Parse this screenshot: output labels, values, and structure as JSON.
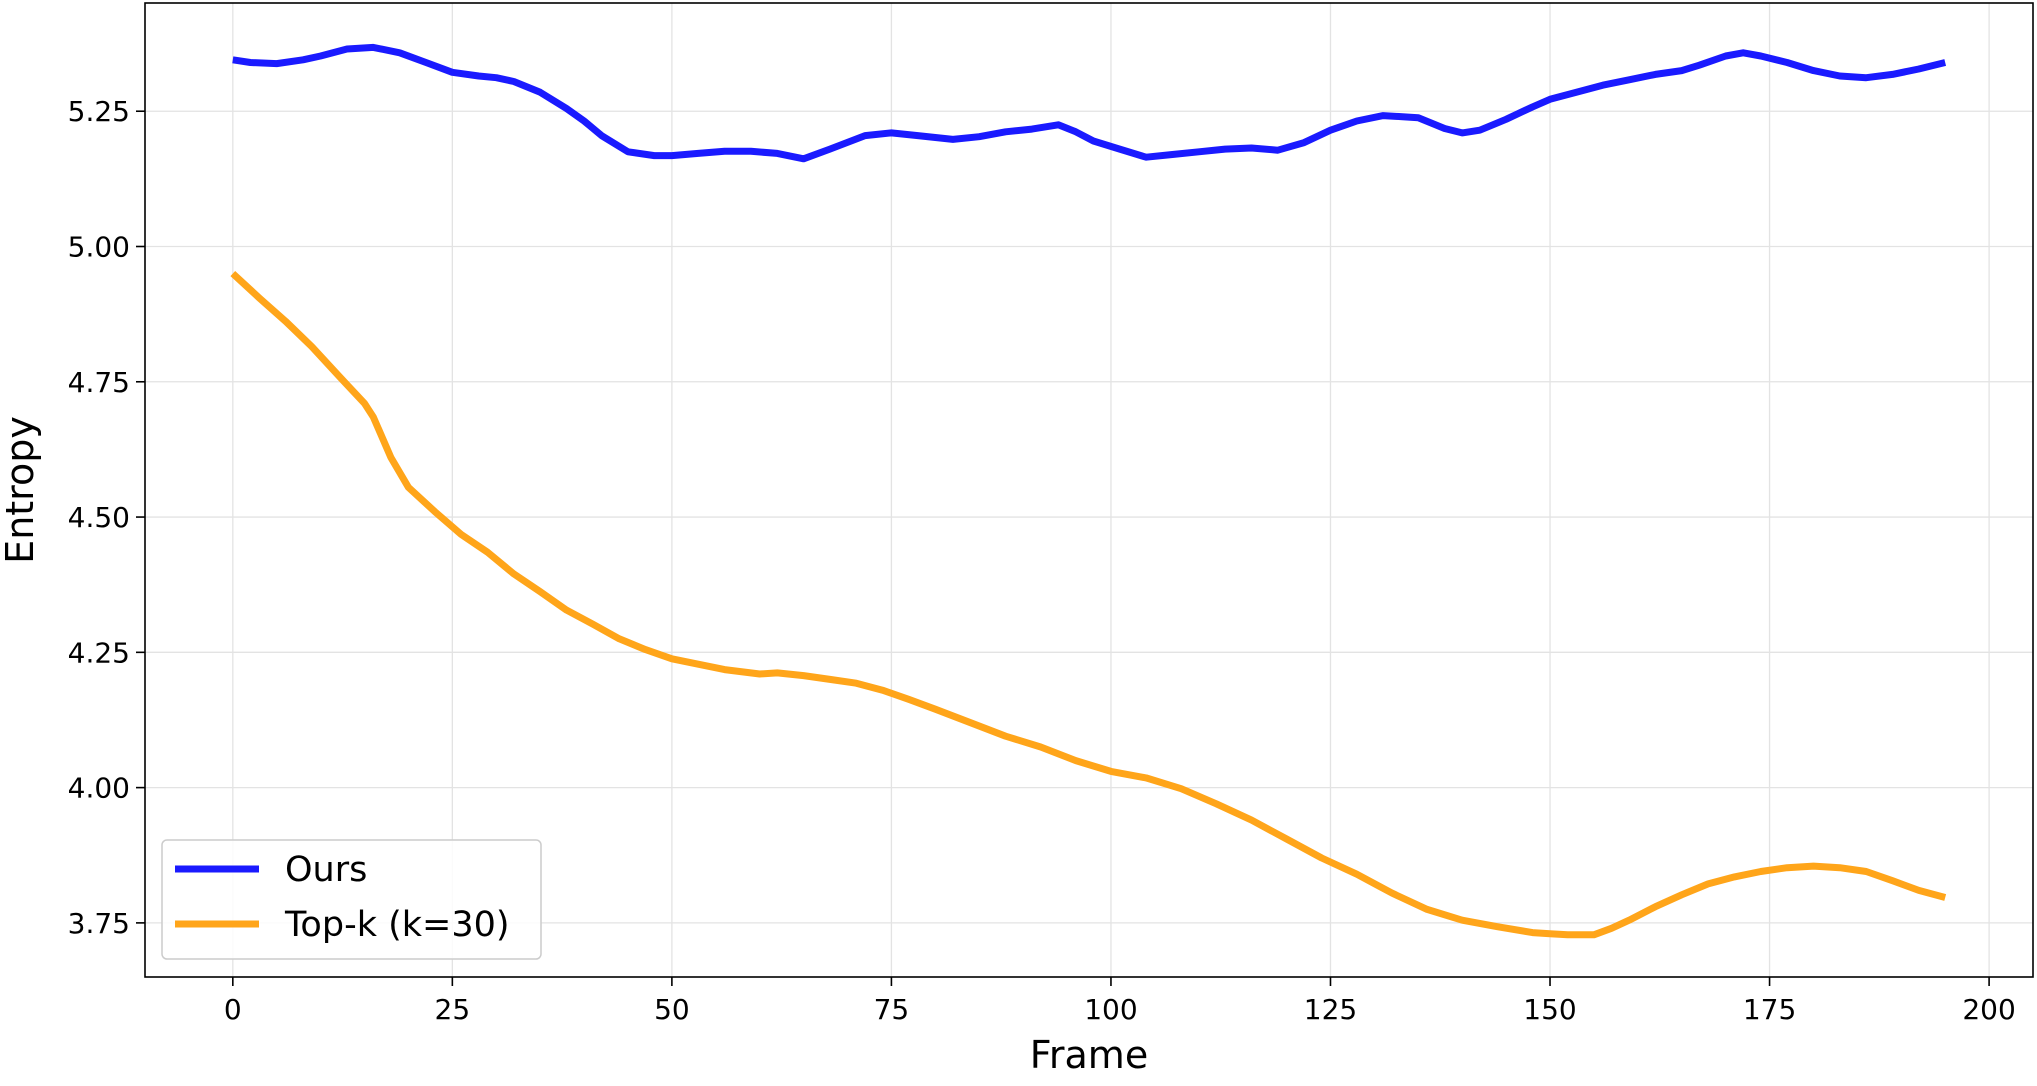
{
  "chart_data": {
    "type": "line",
    "title": "",
    "xlabel": "Frame",
    "ylabel": "Entropy",
    "xlim": [
      -10,
      205
    ],
    "ylim": [
      3.65,
      5.45
    ],
    "xticks": [
      0,
      25,
      50,
      75,
      100,
      125,
      150,
      175,
      200
    ],
    "yticks": [
      3.75,
      4.0,
      4.25,
      4.5,
      4.75,
      5.0,
      5.25
    ],
    "ytick_labels": [
      "3.75",
      "4.00",
      "4.25",
      "4.50",
      "4.75",
      "5.00",
      "5.25"
    ],
    "grid": true,
    "legend_position": "lower-left",
    "series": [
      {
        "name": "Ours",
        "color": "#1a1aff",
        "x": [
          0,
          2,
          5,
          8,
          10,
          13,
          16,
          19,
          22,
          25,
          28,
          30,
          32,
          35,
          38,
          40,
          42,
          45,
          48,
          50,
          53,
          56,
          59,
          62,
          65,
          68,
          72,
          75,
          78,
          82,
          85,
          88,
          91,
          94,
          96,
          98,
          101,
          104,
          107,
          110,
          113,
          116,
          119,
          122,
          125,
          128,
          131,
          133,
          135,
          138,
          140,
          142,
          145,
          148,
          150,
          153,
          156,
          159,
          162,
          165,
          167,
          170,
          172,
          174,
          177,
          180,
          183,
          186,
          189,
          192,
          195
        ],
        "y": [
          5.345,
          5.34,
          5.338,
          5.345,
          5.352,
          5.365,
          5.368,
          5.358,
          5.34,
          5.322,
          5.315,
          5.312,
          5.305,
          5.285,
          5.255,
          5.232,
          5.205,
          5.175,
          5.168,
          5.168,
          5.172,
          5.176,
          5.176,
          5.172,
          5.162,
          5.18,
          5.205,
          5.21,
          5.205,
          5.198,
          5.203,
          5.212,
          5.217,
          5.225,
          5.212,
          5.195,
          5.18,
          5.165,
          5.17,
          5.175,
          5.18,
          5.182,
          5.178,
          5.192,
          5.215,
          5.232,
          5.242,
          5.24,
          5.238,
          5.218,
          5.21,
          5.215,
          5.235,
          5.258,
          5.272,
          5.285,
          5.298,
          5.308,
          5.318,
          5.325,
          5.335,
          5.352,
          5.358,
          5.352,
          5.34,
          5.325,
          5.315,
          5.312,
          5.318,
          5.328,
          5.34
        ]
      },
      {
        "name": "Top-k (k=30)",
        "color": "#ffa51a",
        "x": [
          0,
          3,
          6,
          9,
          12,
          15,
          16,
          18,
          20,
          23,
          26,
          29,
          32,
          35,
          38,
          41,
          44,
          47,
          50,
          53,
          56,
          60,
          62,
          65,
          68,
          71,
          74,
          77,
          80,
          84,
          88,
          92,
          96,
          100,
          104,
          108,
          112,
          116,
          120,
          124,
          128,
          132,
          136,
          140,
          144,
          148,
          150,
          152,
          155,
          157,
          159,
          162,
          165,
          168,
          171,
          174,
          177,
          180,
          183,
          186,
          189,
          192,
          195
        ],
        "y": [
          4.95,
          4.905,
          4.862,
          4.815,
          4.762,
          4.71,
          4.685,
          4.61,
          4.555,
          4.51,
          4.468,
          4.435,
          4.395,
          4.362,
          4.328,
          4.302,
          4.275,
          4.255,
          4.238,
          4.228,
          4.218,
          4.21,
          4.212,
          4.207,
          4.2,
          4.193,
          4.18,
          4.163,
          4.145,
          4.12,
          4.095,
          4.075,
          4.05,
          4.03,
          4.018,
          3.998,
          3.97,
          3.94,
          3.905,
          3.87,
          3.84,
          3.805,
          3.775,
          3.755,
          3.743,
          3.732,
          3.73,
          3.728,
          3.728,
          3.74,
          3.755,
          3.78,
          3.802,
          3.822,
          3.835,
          3.845,
          3.852,
          3.855,
          3.852,
          3.845,
          3.828,
          3.81,
          3.797
        ]
      }
    ]
  }
}
